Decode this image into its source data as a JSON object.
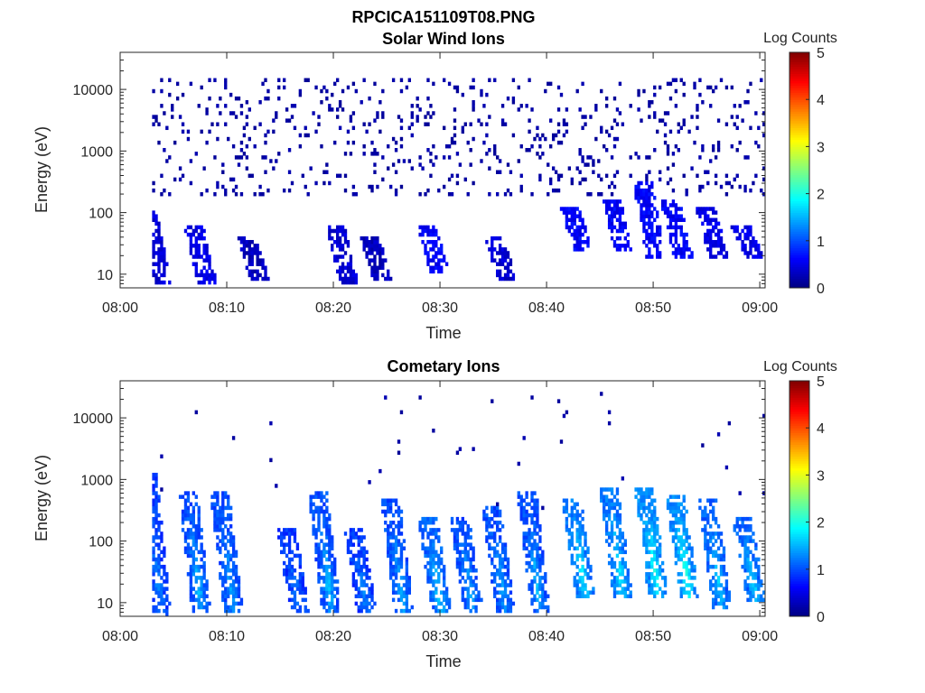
{
  "page": {
    "file_title": "RPCICA151109T08.PNG"
  },
  "chart_data": [
    {
      "type": "heatmap",
      "title": "Solar Wind Ions",
      "xlabel": "Time",
      "ylabel": "Energy (eV)",
      "x_ticks": [
        "08:00",
        "08:10",
        "08:20",
        "08:30",
        "08:40",
        "08:50",
        "09:00"
      ],
      "x_range_minutes": [
        0,
        60.5
      ],
      "y_scale": "log",
      "y_ticks": [
        10,
        100,
        1000,
        10000
      ],
      "y_tick_labels": [
        "10",
        "100",
        "1000",
        "10000"
      ],
      "ylim": [
        6,
        40000
      ],
      "colorbar": {
        "label": "Log Counts",
        "range": [
          0,
          5
        ],
        "tick_labels": [
          "0",
          "1",
          "2",
          "3",
          "4",
          "5"
        ],
        "colormap": "jet"
      },
      "events": [
        {
          "t": 3.2,
          "e_min": 8,
          "e_max": 90,
          "level": 0.4
        },
        {
          "t": 7.5,
          "e_min": 8,
          "e_max": 60,
          "level": 0.5
        },
        {
          "t": 12.5,
          "e_min": 8,
          "e_max": 40,
          "level": 0.3
        },
        {
          "t": 20.8,
          "e_min": 8,
          "e_max": 60,
          "level": 0.4
        },
        {
          "t": 24.0,
          "e_min": 8,
          "e_max": 40,
          "level": 0.3
        },
        {
          "t": 29.3,
          "e_min": 12,
          "e_max": 60,
          "level": 0.6
        },
        {
          "t": 35.7,
          "e_min": 8,
          "e_max": 40,
          "level": 0.4
        },
        {
          "t": 42.8,
          "e_min": 25,
          "e_max": 120,
          "level": 0.6
        },
        {
          "t": 46.7,
          "e_min": 25,
          "e_max": 150,
          "level": 0.6
        },
        {
          "t": 49.6,
          "e_min": 20,
          "e_max": 300,
          "level": 0.6
        },
        {
          "t": 52.2,
          "e_min": 20,
          "e_max": 150,
          "level": 0.6
        },
        {
          "t": 55.5,
          "e_min": 20,
          "e_max": 120,
          "level": 0.5
        },
        {
          "t": 58.8,
          "e_min": 20,
          "e_max": 60,
          "level": 0.5
        }
      ],
      "background_noise": {
        "t_range": [
          3,
          60.5
        ],
        "e_range": [
          200,
          15000
        ],
        "level": 0.1
      }
    },
    {
      "type": "heatmap",
      "title": "Cometary Ions",
      "xlabel": "Time",
      "ylabel": "Energy (eV)",
      "x_ticks": [
        "08:00",
        "08:10",
        "08:20",
        "08:30",
        "08:40",
        "08:50",
        "09:00"
      ],
      "x_range_minutes": [
        0,
        60.5
      ],
      "y_scale": "log",
      "y_ticks": [
        10,
        100,
        1000,
        10000
      ],
      "y_tick_labels": [
        "10",
        "100",
        "1000",
        "10000"
      ],
      "ylim": [
        6,
        40000
      ],
      "colorbar": {
        "label": "Log Counts",
        "range": [
          0,
          5
        ],
        "tick_labels": [
          "0",
          "1",
          "2",
          "3",
          "4",
          "5"
        ],
        "colormap": "jet"
      },
      "events": [
        {
          "t": 3.2,
          "e_min": 8,
          "e_max": 1000,
          "level": 0.9,
          "core": 1.3
        },
        {
          "t": 7.0,
          "e_min": 8,
          "e_max": 500,
          "level": 1.0,
          "core": 1.6
        },
        {
          "t": 10.0,
          "e_min": 8,
          "e_max": 500,
          "level": 1.0,
          "core": 1.4
        },
        {
          "t": 16.2,
          "e_min": 8,
          "e_max": 150,
          "level": 0.9,
          "core": 1.2
        },
        {
          "t": 19.2,
          "e_min": 8,
          "e_max": 500,
          "level": 1.0,
          "core": 1.6
        },
        {
          "t": 22.5,
          "e_min": 8,
          "e_max": 150,
          "level": 0.9,
          "core": 1.3
        },
        {
          "t": 26.0,
          "e_min": 8,
          "e_max": 400,
          "level": 1.0,
          "core": 1.5
        },
        {
          "t": 29.5,
          "e_min": 8,
          "e_max": 200,
          "level": 1.1,
          "core": 1.7
        },
        {
          "t": 32.5,
          "e_min": 8,
          "e_max": 200,
          "level": 1.0,
          "core": 1.5
        },
        {
          "t": 35.5,
          "e_min": 8,
          "e_max": 300,
          "level": 1.0,
          "core": 1.4
        },
        {
          "t": 38.8,
          "e_min": 8,
          "e_max": 500,
          "level": 1.0,
          "core": 1.6
        },
        {
          "t": 43.0,
          "e_min": 15,
          "e_max": 400,
          "level": 1.2,
          "core": 1.9
        },
        {
          "t": 46.5,
          "e_min": 15,
          "e_max": 600,
          "level": 1.2,
          "core": 1.8
        },
        {
          "t": 49.8,
          "e_min": 15,
          "e_max": 600,
          "level": 1.3,
          "core": 2.0
        },
        {
          "t": 52.7,
          "e_min": 15,
          "e_max": 500,
          "level": 1.3,
          "core": 2.1
        },
        {
          "t": 55.8,
          "e_min": 10,
          "e_max": 400,
          "level": 1.1,
          "core": 1.7
        },
        {
          "t": 59.0,
          "e_min": 12,
          "e_max": 200,
          "level": 1.1,
          "core": 1.8
        }
      ],
      "background_noise": {
        "t_range": [
          3,
          60.5
        ],
        "e_range": [
          300,
          30000
        ],
        "level": 0.1
      }
    }
  ]
}
